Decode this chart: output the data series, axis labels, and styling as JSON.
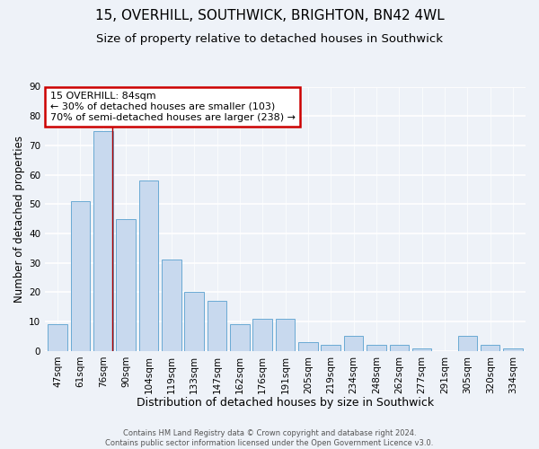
{
  "title": "15, OVERHILL, SOUTHWICK, BRIGHTON, BN42 4WL",
  "subtitle": "Size of property relative to detached houses in Southwick",
  "xlabel": "Distribution of detached houses by size in Southwick",
  "ylabel": "Number of detached properties",
  "bar_labels": [
    "47sqm",
    "61sqm",
    "76sqm",
    "90sqm",
    "104sqm",
    "119sqm",
    "133sqm",
    "147sqm",
    "162sqm",
    "176sqm",
    "191sqm",
    "205sqm",
    "219sqm",
    "234sqm",
    "248sqm",
    "262sqm",
    "277sqm",
    "291sqm",
    "305sqm",
    "320sqm",
    "334sqm"
  ],
  "bar_values": [
    9,
    51,
    75,
    45,
    58,
    31,
    20,
    17,
    9,
    11,
    11,
    3,
    2,
    5,
    2,
    2,
    1,
    0,
    5,
    2,
    1
  ],
  "bar_color": "#c8d9ee",
  "bar_edge_color": "#6aaad4",
  "vline_x_index": 2.42,
  "vline_color": "#aa0000",
  "annotation_text": "15 OVERHILL: 84sqm\n← 30% of detached houses are smaller (103)\n70% of semi-detached houses are larger (238) →",
  "annotation_box_color": "#ffffff",
  "annotation_box_edge_color": "#cc0000",
  "ylim": [
    0,
    90
  ],
  "yticks": [
    0,
    10,
    20,
    30,
    40,
    50,
    60,
    70,
    80,
    90
  ],
  "footer": "Contains HM Land Registry data © Crown copyright and database right 2024.\nContains public sector information licensed under the Open Government Licence v3.0.",
  "bg_color": "#eef2f8",
  "grid_color": "#ffffff",
  "title_fontsize": 11,
  "subtitle_fontsize": 9.5,
  "xlabel_fontsize": 9,
  "ylabel_fontsize": 8.5,
  "tick_fontsize": 7.5,
  "annotation_fontsize": 8,
  "footer_fontsize": 6
}
